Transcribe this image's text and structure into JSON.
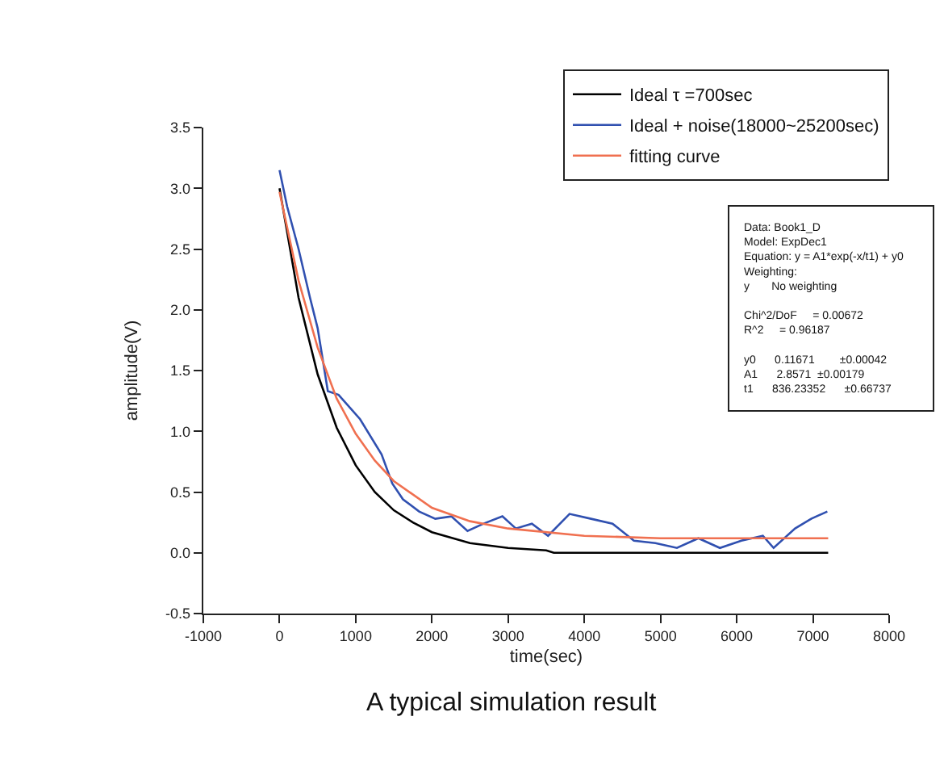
{
  "chart_data": {
    "type": "line",
    "xlabel": "time(sec)",
    "ylabel": "amplitude(V)",
    "xlim": [
      -1000,
      8000
    ],
    "xticks": [
      -1000,
      0,
      1000,
      2000,
      3000,
      4000,
      5000,
      6000,
      7000,
      8000
    ],
    "ylim": [
      -0.5,
      3.5
    ],
    "yticks": [
      -0.5,
      {
        "value": 0,
        "label": "0.0"
      },
      0.5,
      {
        "value": 1,
        "label": "1.0"
      },
      1.5,
      {
        "value": 2,
        "label": "2.0"
      },
      2.5,
      {
        "value": 3,
        "label": "3.0"
      },
      3.5
    ],
    "legend": "top right",
    "marker": "none",
    "line_style": "solid",
    "series": [
      {
        "name": "Ideal τ =700sec",
        "color": "#000000",
        "x": [
          0,
          250,
          500,
          750,
          1000,
          1250,
          1500,
          1750,
          2000,
          2500,
          3000,
          3500,
          3600,
          7200
        ],
        "values": [
          3.0,
          2.1,
          1.47,
          1.03,
          0.72,
          0.5,
          0.35,
          0.25,
          0.17,
          0.08,
          0.04,
          0.02,
          0.0,
          0.0
        ]
      },
      {
        "name": "Ideal + noise(18000~25200sec)",
        "color": "#3050b0",
        "x": [
          0,
          100,
          250,
          400,
          500,
          634,
          775,
          1057,
          1339,
          1480,
          1620,
          1832,
          2044,
          2255,
          2467,
          2678,
          2925,
          3101,
          3312,
          3524,
          3806,
          4088,
          4370,
          4651,
          4933,
          5215,
          5497,
          5779,
          6061,
          6343,
          6484,
          6766,
          6977,
          7189
        ],
        "values": [
          3.15,
          2.85,
          2.5,
          2.1,
          1.85,
          1.33,
          1.3,
          1.1,
          0.81,
          0.57,
          0.44,
          0.34,
          0.28,
          0.3,
          0.18,
          0.24,
          0.3,
          0.2,
          0.24,
          0.14,
          0.32,
          0.28,
          0.24,
          0.1,
          0.08,
          0.04,
          0.12,
          0.04,
          0.1,
          0.14,
          0.04,
          0.2,
          0.28,
          0.34
        ]
      },
      {
        "name": "fitting curve",
        "color": "#f07050",
        "x": [
          0,
          250,
          500,
          750,
          1000,
          1250,
          1500,
          2000,
          2500,
          3000,
          4000,
          5000,
          6000,
          7200
        ],
        "values": [
          2.97,
          2.24,
          1.69,
          1.27,
          0.98,
          0.76,
          0.59,
          0.37,
          0.26,
          0.2,
          0.14,
          0.12,
          0.12,
          0.12
        ]
      }
    ],
    "annotations": [
      "Data: Book1_D\nModel: ExpDec1\nEquation: y = A1*exp(-x/t1) + y0\nWeighting:\ny       No weighting\n\nChi^2/DoF     = 0.00672\nR^2     = 0.96187\n\ny0      0.11671        ±0.00042\nA1      2.8571  ±0.00179\nt1      836.23352      ±0.66737",
      "A typical simulation result"
    ]
  }
}
